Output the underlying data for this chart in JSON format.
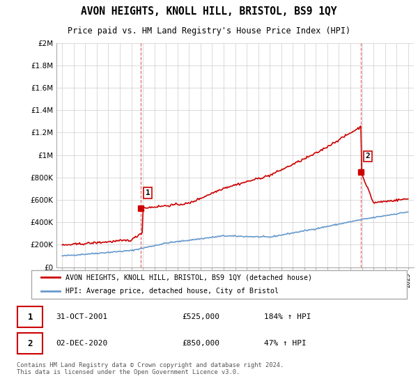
{
  "title": "AVON HEIGHTS, KNOLL HILL, BRISTOL, BS9 1QY",
  "subtitle": "Price paid vs. HM Land Registry's House Price Index (HPI)",
  "legend_label_red": "AVON HEIGHTS, KNOLL HILL, BRISTOL, BS9 1QY (detached house)",
  "legend_label_blue": "HPI: Average price, detached house, City of Bristol",
  "sale1_date": "31-OCT-2001",
  "sale1_price": "£525,000",
  "sale1_hpi": "184% ↑ HPI",
  "sale2_date": "02-DEC-2020",
  "sale2_price": "£850,000",
  "sale2_hpi": "47% ↑ HPI",
  "footer": "Contains HM Land Registry data © Crown copyright and database right 2024.\nThis data is licensed under the Open Government Licence v3.0.",
  "red_color": "#cc0000",
  "blue_color": "#6699cc",
  "dashed_red": "#dd4444",
  "ylim_min": 0,
  "ylim_max": 2000000,
  "sale1_year": 2001.83,
  "sale2_year": 2020.92,
  "sale1_price_val": 525000,
  "sale2_price_val": 850000
}
